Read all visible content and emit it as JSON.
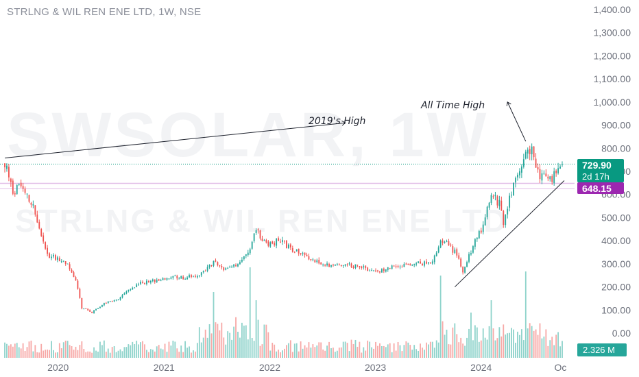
{
  "header": {
    "title": "STRLNG & WIL REN ENE LTD, 1W, NSE"
  },
  "watermark": {
    "symbol": "SWSOLAR, 1W",
    "name": "STRLNG & WIL REN ENE LTD"
  },
  "colors": {
    "up": "#26a69a",
    "down": "#ef5350",
    "vol_up": "#8fd3cb",
    "vol_down": "#f7a9a7",
    "price_badge": "#089981",
    "level_badge": "#9c27b0",
    "level_line": "#e1bee7",
    "grid": "#ffffff"
  },
  "annotations": {
    "high_2019": "2019's High",
    "all_time_high": "All Time High"
  },
  "badges": {
    "last_price": "729.90",
    "countdown": "2d 17h",
    "level": "648.15",
    "volume": "2.326 M"
  },
  "chart_data": {
    "type": "candlestick",
    "title": "STRLNG & WIL REN ENE LTD, 1W, NSE",
    "y_axis": {
      "labels": [
        "1,400.00",
        "1,300.00",
        "1,200.00",
        "1,100.00",
        "1,000.00",
        "900.00",
        "800.00",
        "700.00",
        "600.00",
        "500.00",
        "400.00",
        "300.00",
        "200.00",
        "100.00",
        "0.00"
      ],
      "range": [
        0,
        1400
      ]
    },
    "x_axis": {
      "labels": [
        "2020",
        "2021",
        "2022",
        "2023",
        "2024",
        "Oc"
      ],
      "range": [
        "2019-07-01",
        "2024-10-07"
      ]
    },
    "last_price": 729.9,
    "horizontal_level": 648.15,
    "level_2019_high": 758,
    "volume_last": "2.326 M",
    "price_path": [
      [
        "2019-07-01",
        735
      ],
      [
        "2019-07-29",
        620
      ],
      [
        "2019-09-02",
        630
      ],
      [
        "2019-10-07",
        560
      ],
      [
        "2019-11-04",
        420
      ],
      [
        "2019-11-25",
        340
      ],
      [
        "2019-12-30",
        320
      ],
      [
        "2020-02-03",
        300
      ],
      [
        "2020-03-02",
        230
      ],
      [
        "2020-03-23",
        110
      ],
      [
        "2020-04-27",
        90
      ],
      [
        "2020-06-08",
        130
      ],
      [
        "2020-07-20",
        140
      ],
      [
        "2020-09-07",
        190
      ],
      [
        "2020-10-19",
        220
      ],
      [
        "2020-12-14",
        230
      ],
      [
        "2021-02-01",
        245
      ],
      [
        "2021-03-15",
        240
      ],
      [
        "2021-05-10",
        255
      ],
      [
        "2021-06-21",
        310
      ],
      [
        "2021-08-02",
        275
      ],
      [
        "2021-09-20",
        300
      ],
      [
        "2021-10-25",
        370
      ],
      [
        "2021-11-15",
        440
      ],
      [
        "2021-12-27",
        385
      ],
      [
        "2022-02-07",
        400
      ],
      [
        "2022-03-21",
        360
      ],
      [
        "2022-05-09",
        330
      ],
      [
        "2022-06-20",
        300
      ],
      [
        "2022-08-08",
        290
      ],
      [
        "2022-10-03",
        295
      ],
      [
        "2022-11-21",
        280
      ],
      [
        "2023-01-09",
        270
      ],
      [
        "2023-03-06",
        290
      ],
      [
        "2023-04-24",
        300
      ],
      [
        "2023-06-12",
        300
      ],
      [
        "2023-07-17",
        305
      ],
      [
        "2023-08-14",
        400
      ],
      [
        "2023-09-11",
        380
      ],
      [
        "2023-10-09",
        340
      ],
      [
        "2023-10-30",
        270
      ],
      [
        "2023-12-04",
        380
      ],
      [
        "2024-01-08",
        460
      ],
      [
        "2024-02-05",
        600
      ],
      [
        "2024-03-04",
        560
      ],
      [
        "2024-03-18",
        480
      ],
      [
        "2024-04-15",
        620
      ],
      [
        "2024-05-13",
        700
      ],
      [
        "2024-06-03",
        800
      ],
      [
        "2024-06-24",
        790
      ],
      [
        "2024-07-22",
        690
      ],
      [
        "2024-08-19",
        660
      ],
      [
        "2024-09-16",
        690
      ],
      [
        "2024-10-07",
        729.9
      ]
    ],
    "volume_spikes": [
      [
        "2021-06-21",
        80
      ],
      [
        "2021-10-25",
        110
      ],
      [
        "2021-11-15",
        70
      ],
      [
        "2023-08-14",
        100
      ],
      [
        "2023-11-27",
        55
      ],
      [
        "2024-02-05",
        70
      ],
      [
        "2024-06-03",
        105
      ],
      [
        "2024-07-22",
        42
      ]
    ],
    "trendlines": [
      {
        "label": "2019's High",
        "from": [
          "2019-07-01",
          758
        ],
        "to": [
          "2022-09-19",
          910
        ]
      },
      {
        "label": "All Time High",
        "from": [
          "2024-06-03",
          830
        ],
        "to": [
          "2024-04-01",
          1000
        ]
      },
      {
        "label": "",
        "from": [
          "2023-10-02",
          200
        ],
        "to": [
          "2024-10-14",
          660
        ]
      }
    ]
  }
}
